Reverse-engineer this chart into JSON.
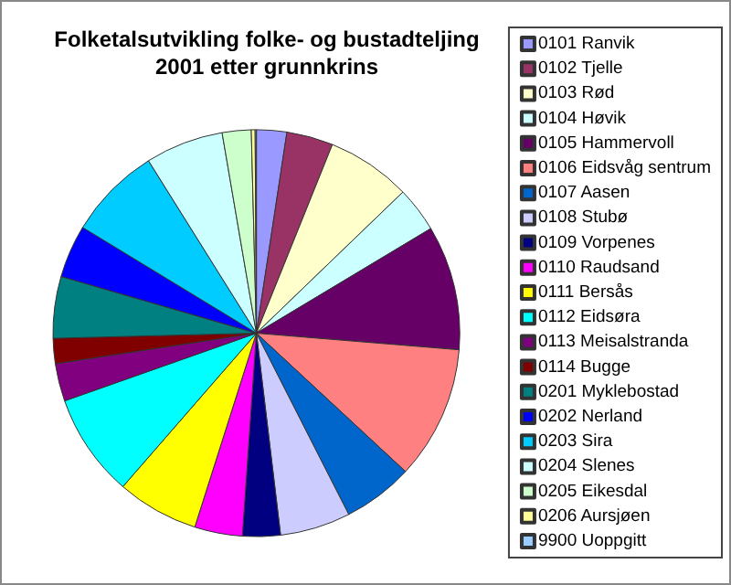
{
  "chart_data": {
    "type": "pie",
    "title": "Folketalsutvikling folke- og bustadteljing\n2001 etter grunnkrins",
    "categories": [
      "0101 Ranvik",
      "0102 Tjelle",
      "0103 Rød",
      "0104 Høvik",
      "0105 Hammervoll",
      "0106 Eidsvåg sentrum",
      "0107 Aasen",
      "0108 Stubø",
      "0109 Vorpenes",
      "0110 Raudsand",
      "0111 Bersås",
      "0112 Eidsøra",
      "0113 Meisalstranda",
      "0114 Bugge",
      "0201 Myklebostad",
      "0202 Nerland",
      "0203 Sira",
      "0204 Slenes",
      "0205 Eikesdal",
      "0206 Aursjøen",
      "9900 Uoppgitt"
    ],
    "values": [
      2.4,
      3.7,
      6.7,
      3.6,
      9.9,
      10.6,
      5.6,
      5.6,
      3.0,
      3.8,
      6.5,
      8.2,
      3.0,
      2.0,
      4.9,
      4.2,
      7.4,
      6.2,
      2.3,
      0.3,
      0.1
    ],
    "colors": [
      "#9999ff",
      "#993366",
      "#ffffcc",
      "#ccffff",
      "#660066",
      "#ff8080",
      "#0066cc",
      "#ccccff",
      "#000080",
      "#ff00ff",
      "#ffff00",
      "#00ffff",
      "#800080",
      "#800000",
      "#008080",
      "#0000ff",
      "#00ccff",
      "#ccffff",
      "#ccffcc",
      "#ffff99",
      "#99ccff"
    ],
    "legend": "right"
  }
}
